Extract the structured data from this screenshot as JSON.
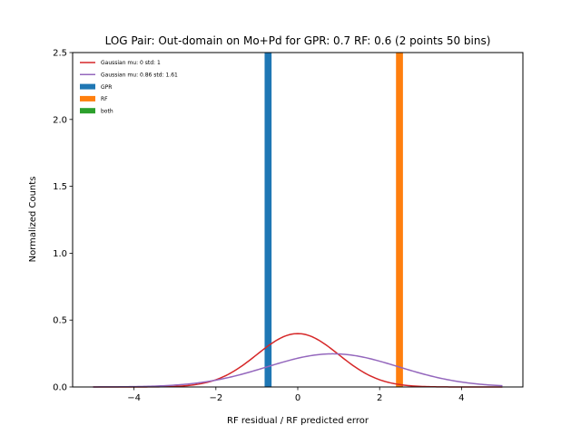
{
  "chart_data": {
    "type": "histogram",
    "title": "LOG Pair: Out-domain on Mo+Pd for GPR: 0.7 RF: 0.6 (2 points 50 bins)",
    "xlabel": "RF residual / RF predicted error",
    "ylabel": "Normalized Counts",
    "xlim": [
      -5.5,
      5.5
    ],
    "ylim": [
      0,
      2.5
    ],
    "xticks": [
      -4,
      -2,
      0,
      2,
      4
    ],
    "yticks": [
      0.0,
      0.5,
      1.0,
      1.5,
      2.0,
      2.5
    ],
    "xtick_labels": [
      "−4",
      "−2",
      "0",
      "2",
      "4"
    ],
    "ytick_labels": [
      "0.0",
      "0.5",
      "1.0",
      "1.5",
      "2.0",
      "2.5"
    ],
    "legend_position": "top-left",
    "bars": [
      {
        "name": "GPR",
        "color": "#1f77b4",
        "x0": -0.81,
        "x1": -0.64,
        "height": 2.5
      },
      {
        "name": "RF",
        "color": "#ff7f0e",
        "x0": 2.4,
        "x1": 2.57,
        "height": 2.5
      }
    ],
    "curves": [
      {
        "name": "Gaussian mu: 0 std: 1",
        "color": "#d62728",
        "mu": 0,
        "std": 1,
        "x_range": [
          -5,
          5
        ]
      },
      {
        "name": "Gaussian mu: 0.86 std: 1.61",
        "color": "#9467bd",
        "mu": 0.86,
        "std": 1.61,
        "x_range": [
          -5,
          5
        ]
      }
    ],
    "legend": [
      {
        "label": "Gaussian mu: 0 std: 1",
        "kind": "line",
        "color": "#d62728"
      },
      {
        "label": "Gaussian mu: 0.86 std: 1.61",
        "kind": "line",
        "color": "#9467bd"
      },
      {
        "label": "GPR",
        "kind": "patch",
        "color": "#1f77b4"
      },
      {
        "label": "RF",
        "kind": "patch",
        "color": "#ff7f0e"
      },
      {
        "label": "both",
        "kind": "patch",
        "color": "#2ca02c"
      }
    ]
  }
}
